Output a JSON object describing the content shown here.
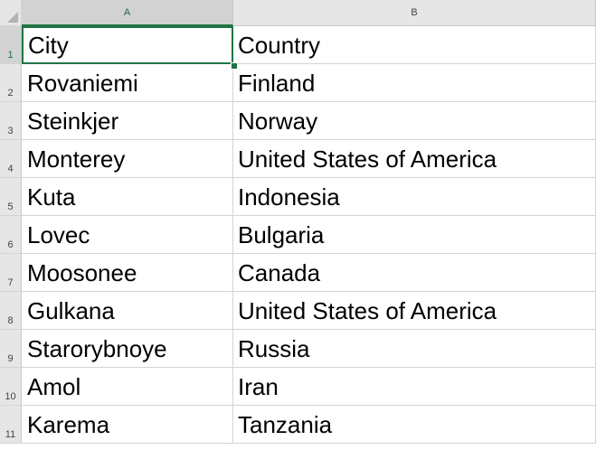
{
  "columns": [
    "A",
    "B"
  ],
  "rows": [
    {
      "num": "1",
      "a": "City",
      "b": "Country"
    },
    {
      "num": "2",
      "a": "Rovaniemi",
      "b": "Finland"
    },
    {
      "num": "3",
      "a": "Steinkjer",
      "b": "Norway"
    },
    {
      "num": "4",
      "a": "Monterey",
      "b": "United States of America"
    },
    {
      "num": "5",
      "a": "Kuta",
      "b": "Indonesia"
    },
    {
      "num": "6",
      "a": "Lovec",
      "b": "Bulgaria"
    },
    {
      "num": "7",
      "a": "Moosonee",
      "b": "Canada"
    },
    {
      "num": "8",
      "a": "Gulkana",
      "b": "United States of America"
    },
    {
      "num": "9",
      "a": "Starorybnoye",
      "b": "Russia"
    },
    {
      "num": "10",
      "a": "Amol",
      "b": "Iran"
    },
    {
      "num": "11",
      "a": "Karema",
      "b": "Tanzania"
    }
  ],
  "colors": {
    "selection": "#217346"
  }
}
